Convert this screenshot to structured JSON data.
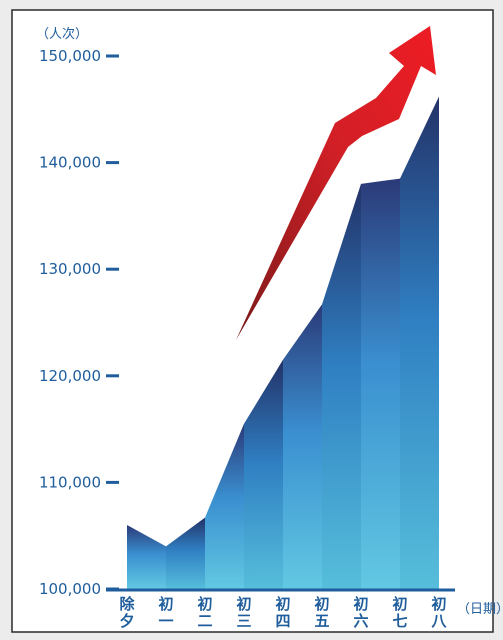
{
  "chart_data": {
    "type": "area",
    "title": "",
    "ylabel": "（人次）",
    "xlabel": "（日期）",
    "ylim": [
      100000,
      150000
    ],
    "yticks": [
      "100,000",
      "110,000",
      "120,000",
      "130,000",
      "140,000",
      "150,000"
    ],
    "ytick_values": [
      100000,
      110000,
      120000,
      130000,
      140000,
      150000
    ],
    "categories": [
      [
        "除",
        "夕"
      ],
      [
        "初",
        "一"
      ],
      [
        "初",
        "二"
      ],
      [
        "初",
        "三"
      ],
      [
        "初",
        "四"
      ],
      [
        "初",
        "五"
      ],
      [
        "初",
        "六"
      ],
      [
        "初",
        "七"
      ],
      [
        "初",
        "八"
      ]
    ],
    "series": [
      {
        "values": [
          106000,
          104000,
          106700,
          115500,
          121500,
          126700,
          138000,
          138500,
          146200
        ]
      }
    ],
    "trend_arrow": {
      "color_start": "#7a1a1a",
      "color_end": "#ee1c24",
      "direction": "up"
    },
    "colors": {
      "axis": "#1f5d9c",
      "area_top": "#2b3a78",
      "area_mid": "#3a8fd0",
      "area_bottom": "#62c8e2",
      "background": "#ffffff",
      "border": "#2a2a2a"
    },
    "grid": false,
    "legend": "none"
  }
}
